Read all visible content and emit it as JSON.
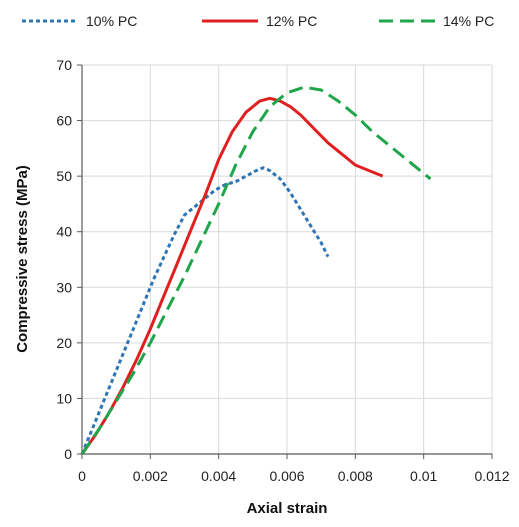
{
  "chart_data": {
    "type": "line",
    "title": "",
    "xlabel": "Axial strain",
    "ylabel": "Compressive stress (MPa)",
    "xlim": [
      0,
      0.012
    ],
    "ylim": [
      0,
      70
    ],
    "xticks": [
      0,
      0.002,
      0.004,
      0.006,
      0.008,
      0.01,
      0.012
    ],
    "yticks": [
      0,
      10,
      20,
      30,
      40,
      50,
      60,
      70
    ],
    "xtick_labels": [
      "0",
      "0.002",
      "0.004",
      "0.006",
      "0.008",
      "0.01",
      "0.012"
    ],
    "ytick_labels": [
      "0",
      "10",
      "20",
      "30",
      "40",
      "50",
      "60",
      "70"
    ],
    "grid": {
      "horizontal": true,
      "vertical": true
    },
    "legend_position": "top",
    "series": [
      {
        "name": "10% PC",
        "color": "#2e75b6",
        "dash": "short-dash",
        "x": [
          0,
          0.0003,
          0.0006,
          0.0009,
          0.0012,
          0.0015,
          0.0018,
          0.0021,
          0.0024,
          0.0027,
          0.003,
          0.0033,
          0.0036,
          0.0039,
          0.0042,
          0.0045,
          0.0048,
          0.0051,
          0.0053,
          0.0055,
          0.0058,
          0.0061,
          0.0064,
          0.0067,
          0.007,
          0.0072
        ],
        "y": [
          0,
          4.5,
          9,
          13.5,
          18,
          22.5,
          27,
          31.5,
          35.5,
          39.5,
          43,
          44.5,
          46,
          47.5,
          48.5,
          49,
          50,
          51,
          51.5,
          51,
          49.5,
          47,
          44,
          41,
          38,
          35.5
        ]
      },
      {
        "name": "12% PC",
        "color": "#e02020",
        "dash": "solid",
        "x": [
          0,
          0.0004,
          0.0008,
          0.0012,
          0.0016,
          0.002,
          0.0024,
          0.0028,
          0.0032,
          0.0036,
          0.004,
          0.0044,
          0.0048,
          0.0052,
          0.0055,
          0.0058,
          0.0061,
          0.0064,
          0.0068,
          0.0072,
          0.0076,
          0.008,
          0.0084,
          0.0088
        ],
        "y": [
          0,
          3.5,
          7.5,
          12,
          17,
          22.5,
          28.5,
          34.5,
          40.5,
          46.5,
          53,
          58,
          61.5,
          63.5,
          64,
          63.5,
          62.5,
          61,
          58.5,
          56,
          54,
          52,
          51,
          50
        ]
      },
      {
        "name": "14% PC",
        "color": "#1fa54a",
        "dash": "long-dash",
        "x": [
          0,
          0.0005,
          0.001,
          0.0015,
          0.002,
          0.0025,
          0.003,
          0.0035,
          0.004,
          0.0045,
          0.005,
          0.0055,
          0.006,
          0.0065,
          0.007,
          0.0075,
          0.008,
          0.0085,
          0.009,
          0.0095,
          0.01,
          0.0102
        ],
        "y": [
          0,
          4.5,
          9.5,
          14.5,
          20,
          26,
          32,
          38.5,
          45,
          52,
          58,
          62.5,
          65,
          66,
          65.5,
          63.5,
          61,
          58,
          55.5,
          53,
          50.5,
          49.5
        ]
      }
    ]
  }
}
